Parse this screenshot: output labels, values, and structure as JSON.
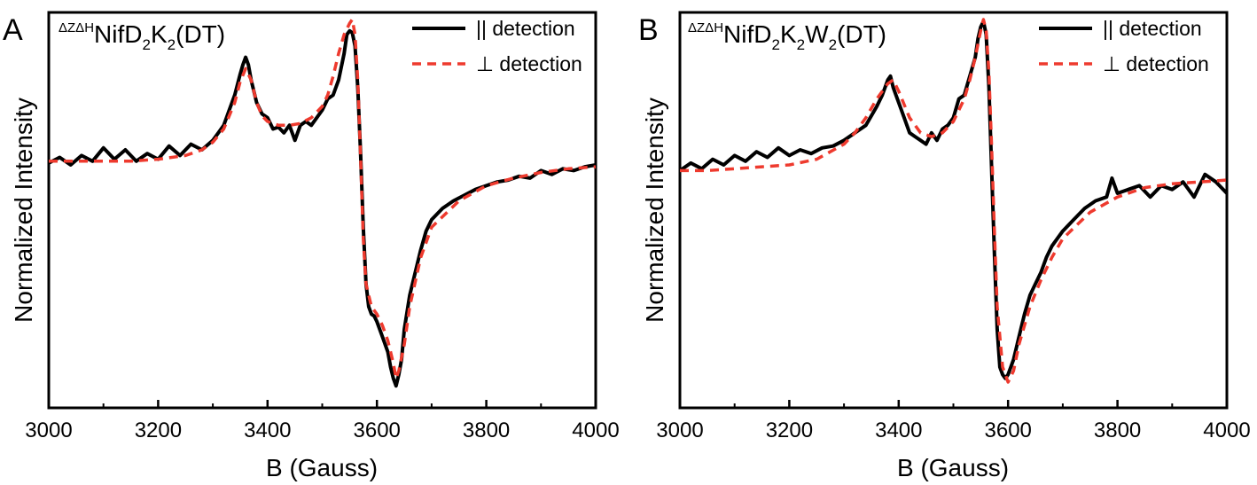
{
  "chart_data": [
    {
      "type": "line",
      "panel": "A",
      "label": {
        "prefix_sup": "ΔZΔH",
        "parts": [
          [
            "NifD",
            ""
          ],
          [
            "2",
            "sub"
          ],
          [
            "K",
            ""
          ],
          [
            "2",
            "sub"
          ],
          [
            "(DT)",
            ""
          ]
        ]
      },
      "xlabel": "B (Gauss)",
      "ylabel": "Normalized Intensity",
      "xlim": [
        3000,
        4000
      ],
      "ylim": [
        0,
        1
      ],
      "xticks": [
        "3000",
        "3200",
        "3400",
        "3600",
        "3800",
        "4000"
      ],
      "grid": false,
      "legend_position": "top-right",
      "series": [
        {
          "name": "|| detection",
          "color": "#000000",
          "style": "solid",
          "x": [
            3000,
            3020,
            3040,
            3060,
            3080,
            3100,
            3120,
            3140,
            3160,
            3180,
            3200,
            3220,
            3240,
            3260,
            3280,
            3300,
            3310,
            3320,
            3330,
            3340,
            3350,
            3355,
            3360,
            3365,
            3370,
            3380,
            3390,
            3400,
            3410,
            3420,
            3430,
            3440,
            3450,
            3460,
            3470,
            3480,
            3490,
            3500,
            3510,
            3520,
            3530,
            3540,
            3545,
            3550,
            3555,
            3560,
            3565,
            3570,
            3575,
            3580,
            3585,
            3590,
            3595,
            3600,
            3610,
            3620,
            3625,
            3630,
            3635,
            3640,
            3645,
            3650,
            3660,
            3670,
            3680,
            3690,
            3700,
            3720,
            3740,
            3760,
            3780,
            3800,
            3820,
            3840,
            3860,
            3880,
            3900,
            3920,
            3940,
            3960,
            3980,
            4000
          ],
          "y": [
            0.62,
            0.635,
            0.615,
            0.64,
            0.625,
            0.66,
            0.63,
            0.655,
            0.625,
            0.645,
            0.63,
            0.665,
            0.64,
            0.67,
            0.655,
            0.68,
            0.7,
            0.72,
            0.76,
            0.8,
            0.855,
            0.88,
            0.9,
            0.88,
            0.84,
            0.78,
            0.75,
            0.74,
            0.71,
            0.715,
            0.7,
            0.72,
            0.68,
            0.72,
            0.73,
            0.72,
            0.74,
            0.76,
            0.79,
            0.8,
            0.84,
            0.91,
            0.96,
            0.97,
            0.965,
            0.93,
            0.82,
            0.65,
            0.45,
            0.3,
            0.24,
            0.22,
            0.215,
            0.2,
            0.16,
            0.12,
            0.08,
            0.05,
            0.03,
            0.06,
            0.1,
            0.18,
            0.27,
            0.33,
            0.39,
            0.44,
            0.47,
            0.5,
            0.52,
            0.535,
            0.55,
            0.56,
            0.57,
            0.575,
            0.585,
            0.58,
            0.6,
            0.59,
            0.605,
            0.6,
            0.61,
            0.615
          ]
        },
        {
          "name": "⊥ detection",
          "color": "#ee3a2e",
          "style": "dashed",
          "x": [
            3000,
            3050,
            3100,
            3150,
            3200,
            3250,
            3280,
            3300,
            3320,
            3340,
            3350,
            3360,
            3370,
            3380,
            3390,
            3400,
            3420,
            3440,
            3460,
            3480,
            3500,
            3510,
            3520,
            3530,
            3540,
            3550,
            3555,
            3560,
            3565,
            3570,
            3575,
            3580,
            3590,
            3600,
            3610,
            3620,
            3630,
            3635,
            3640,
            3650,
            3660,
            3680,
            3700,
            3750,
            3800,
            3850,
            3900,
            3950,
            4000
          ],
          "y": [
            0.625,
            0.625,
            0.625,
            0.625,
            0.63,
            0.64,
            0.655,
            0.675,
            0.71,
            0.78,
            0.835,
            0.87,
            0.84,
            0.78,
            0.745,
            0.73,
            0.72,
            0.72,
            0.725,
            0.74,
            0.77,
            0.8,
            0.85,
            0.91,
            0.96,
            0.99,
            1.0,
            0.96,
            0.84,
            0.64,
            0.42,
            0.3,
            0.24,
            0.22,
            0.19,
            0.15,
            0.09,
            0.05,
            0.07,
            0.14,
            0.24,
            0.37,
            0.45,
            0.52,
            0.56,
            0.58,
            0.595,
            0.605,
            0.61
          ]
        }
      ]
    },
    {
      "type": "line",
      "panel": "B",
      "label": {
        "prefix_sup": "ΔZΔH",
        "parts": [
          [
            "NifD",
            ""
          ],
          [
            "2",
            "sub"
          ],
          [
            "K",
            ""
          ],
          [
            "2",
            "sub"
          ],
          [
            "W",
            ""
          ],
          [
            "2",
            "sub"
          ],
          [
            "(DT)",
            ""
          ]
        ]
      },
      "xlabel": "B (Gauss)",
      "ylabel": "Normalized Intensity",
      "xlim": [
        3000,
        4000
      ],
      "ylim": [
        0,
        1
      ],
      "xticks": [
        "3000",
        "3200",
        "3400",
        "3600",
        "3800",
        "4000"
      ],
      "grid": false,
      "legend_position": "top-right",
      "series": [
        {
          "name": "|| detection",
          "color": "#000000",
          "style": "solid",
          "x": [
            3000,
            3020,
            3040,
            3060,
            3080,
            3100,
            3120,
            3140,
            3160,
            3180,
            3200,
            3220,
            3240,
            3260,
            3280,
            3300,
            3320,
            3340,
            3360,
            3370,
            3380,
            3385,
            3390,
            3400,
            3410,
            3420,
            3430,
            3440,
            3450,
            3460,
            3470,
            3480,
            3490,
            3500,
            3510,
            3520,
            3530,
            3540,
            3545,
            3550,
            3555,
            3560,
            3565,
            3570,
            3575,
            3580,
            3585,
            3590,
            3595,
            3600,
            3610,
            3620,
            3630,
            3640,
            3650,
            3660,
            3670,
            3680,
            3700,
            3720,
            3740,
            3760,
            3780,
            3790,
            3800,
            3820,
            3840,
            3860,
            3880,
            3900,
            3920,
            3940,
            3960,
            3980,
            4000
          ],
          "y": [
            0.6,
            0.62,
            0.605,
            0.63,
            0.615,
            0.64,
            0.625,
            0.65,
            0.635,
            0.66,
            0.64,
            0.655,
            0.645,
            0.66,
            0.665,
            0.68,
            0.7,
            0.72,
            0.77,
            0.8,
            0.84,
            0.85,
            0.82,
            0.78,
            0.74,
            0.7,
            0.69,
            0.68,
            0.67,
            0.7,
            0.68,
            0.71,
            0.72,
            0.74,
            0.79,
            0.8,
            0.85,
            0.9,
            0.95,
            0.98,
            0.995,
            0.96,
            0.82,
            0.6,
            0.38,
            0.18,
            0.08,
            0.06,
            0.05,
            0.06,
            0.1,
            0.16,
            0.22,
            0.27,
            0.3,
            0.33,
            0.37,
            0.4,
            0.44,
            0.47,
            0.5,
            0.52,
            0.53,
            0.58,
            0.54,
            0.55,
            0.56,
            0.53,
            0.56,
            0.55,
            0.57,
            0.53,
            0.59,
            0.57,
            0.54
          ]
        },
        {
          "name": "⊥ detection",
          "color": "#ee3a2e",
          "style": "dashed",
          "x": [
            3000,
            3050,
            3100,
            3150,
            3200,
            3250,
            3300,
            3320,
            3340,
            3360,
            3380,
            3390,
            3400,
            3420,
            3440,
            3460,
            3480,
            3500,
            3520,
            3530,
            3540,
            3550,
            3555,
            3560,
            3565,
            3570,
            3575,
            3580,
            3590,
            3600,
            3610,
            3620,
            3640,
            3660,
            3680,
            3700,
            3750,
            3800,
            3850,
            3900,
            3950,
            4000
          ],
          "y": [
            0.6,
            0.6,
            0.605,
            0.61,
            0.615,
            0.63,
            0.67,
            0.7,
            0.74,
            0.79,
            0.83,
            0.84,
            0.81,
            0.74,
            0.7,
            0.69,
            0.7,
            0.73,
            0.79,
            0.84,
            0.9,
            0.97,
            1.0,
            0.97,
            0.86,
            0.66,
            0.44,
            0.24,
            0.08,
            0.04,
            0.07,
            0.14,
            0.24,
            0.31,
            0.37,
            0.42,
            0.49,
            0.53,
            0.555,
            0.565,
            0.57,
            0.575
          ]
        }
      ]
    }
  ]
}
